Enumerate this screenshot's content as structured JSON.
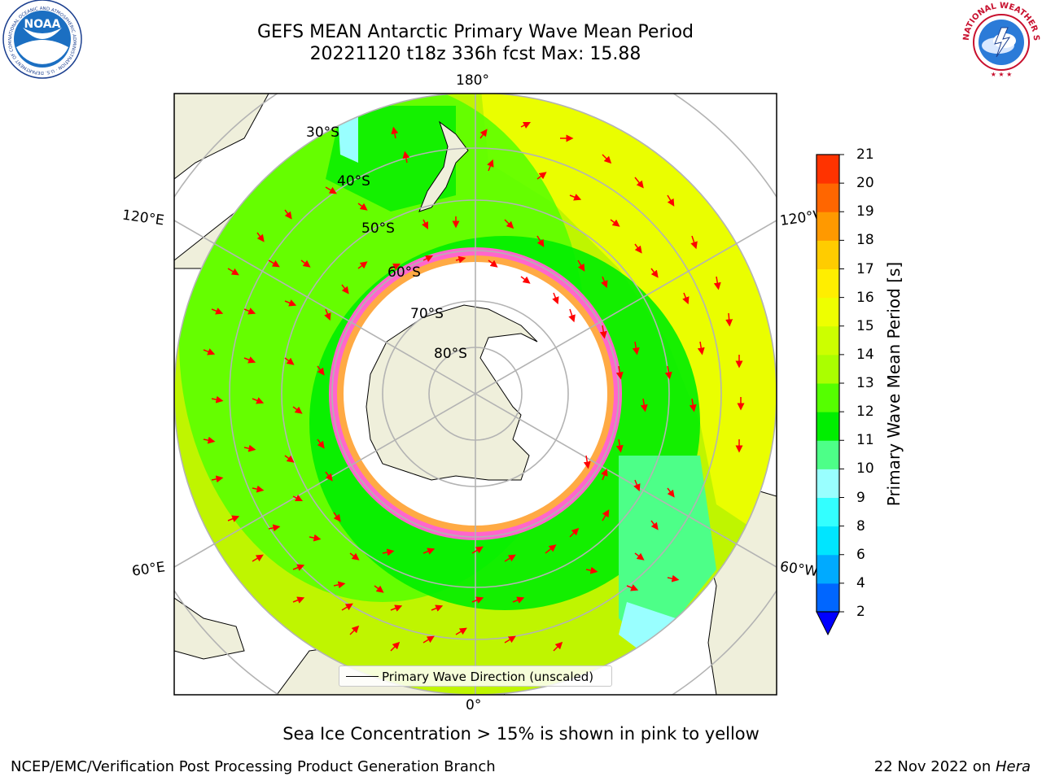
{
  "title": {
    "line1": "GEFS MEAN Antarctic Primary Wave Mean Period",
    "line2": "20221120 t18z 336h fcst   Max: 15.88"
  },
  "longitude_labels": {
    "top": "180°",
    "bottom": "0°",
    "upper_left": "120°E",
    "upper_right": "120°W",
    "lower_left": "60°E",
    "lower_right": "60°W"
  },
  "latitude_labels": [
    "30°S",
    "40°S",
    "50°S",
    "60°S",
    "70°S",
    "80°S"
  ],
  "legend": {
    "label": "Primary Wave Direction (unscaled)"
  },
  "colorbar": {
    "label": "Primary Wave Mean Period [s]",
    "ticks": [
      "2",
      "4",
      "6",
      "8",
      "9",
      "10",
      "11",
      "12",
      "13",
      "14",
      "15",
      "16",
      "17",
      "18",
      "19",
      "20",
      "21"
    ],
    "colors": [
      "#0066ff",
      "#00aaff",
      "#00e5ff",
      "#33ffff",
      "#99ffff",
      "#4dff88",
      "#00ee00",
      "#55ff00",
      "#aaff00",
      "#ccff00",
      "#eeff00",
      "#ffee00",
      "#ffcc00",
      "#ff9900",
      "#ff6600",
      "#ff3300"
    ],
    "extend_color": "#0000ff"
  },
  "note": "Sea Ice Concentration > 15% is shown in pink to yellow",
  "footer": {
    "left": "NCEP/EMC/Verification Post Processing Product Generation Branch",
    "right_prefix": "22 Nov 2022 on ",
    "right_host": "Hera"
  },
  "logos": {
    "noara": "NOAA",
    "noaa_ring": "NATIONAL OCEANIC AND ATMOSPHERIC ADMINISTRATION · U.S. DEPARTMENT OF COMMERCE",
    "nws_ring": "NATIONAL WEATHER SERVICE"
  }
}
